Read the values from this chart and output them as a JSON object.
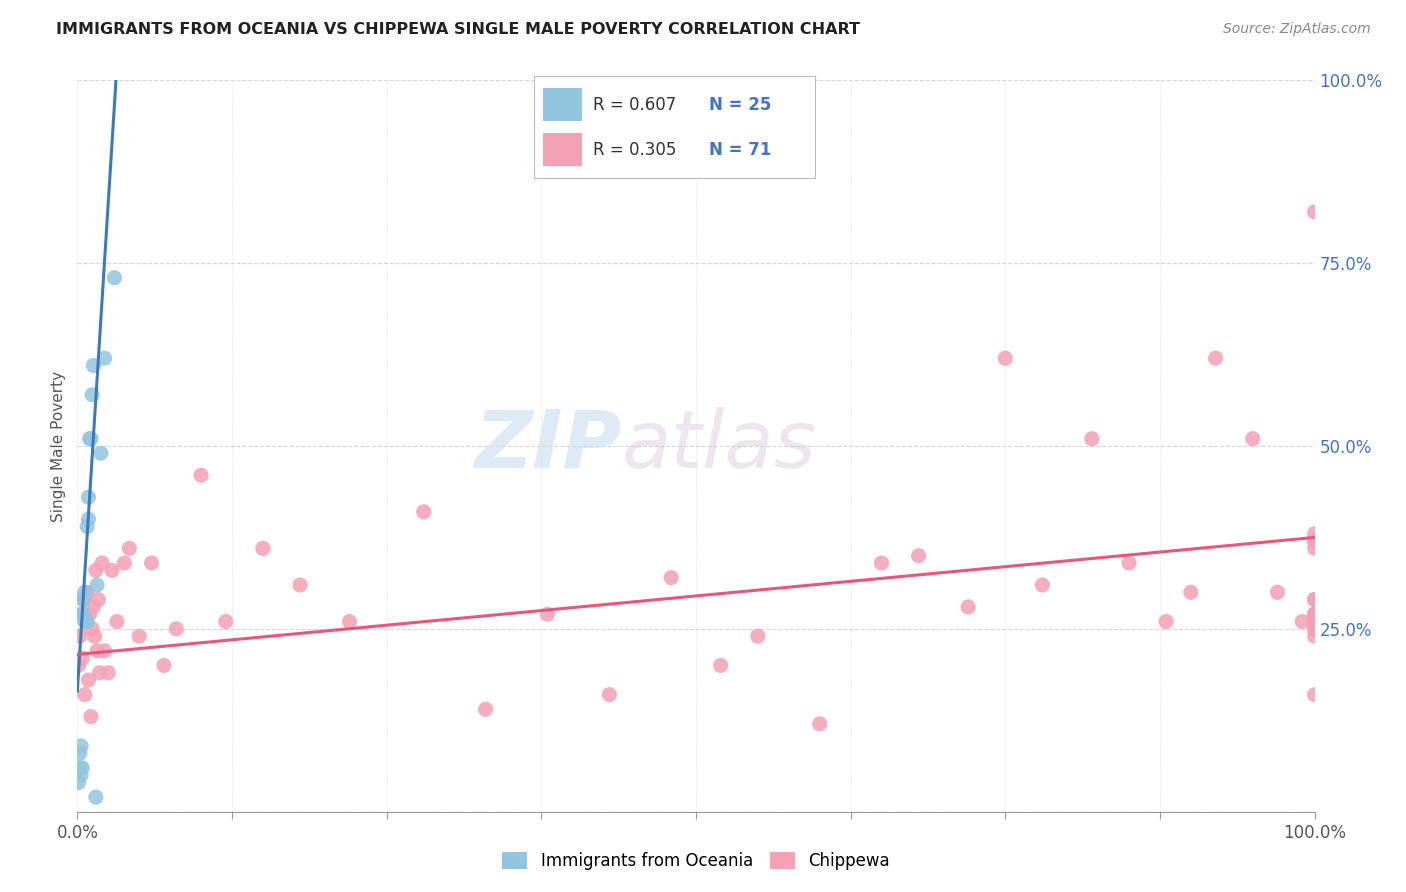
{
  "title": "IMMIGRANTS FROM OCEANIA VS CHIPPEWA SINGLE MALE POVERTY CORRELATION CHART",
  "source": "Source: ZipAtlas.com",
  "ylabel": "Single Male Poverty",
  "legend_label1": "Immigrants from Oceania",
  "legend_label2": "Chippewa",
  "R1": 0.607,
  "N1": 25,
  "R2": 0.305,
  "N2": 71,
  "color_blue": "#92c5de",
  "color_pink": "#f4a0b5",
  "color_line_blue": "#3a7abf",
  "color_line_pink": "#e8567a",
  "watermark_zip": "ZIP",
  "watermark_atlas": "atlas",
  "ytick_vals": [
    0.0,
    0.25,
    0.5,
    0.75,
    1.0
  ],
  "ytick_labels": [
    "",
    "25.0%",
    "50.0%",
    "75.0%",
    "100.0%"
  ],
  "xtick_major_vals": [
    0.0,
    0.125,
    0.25,
    0.375,
    0.5,
    0.625,
    0.75,
    0.875,
    1.0
  ],
  "xlim": [
    0.0,
    1.0
  ],
  "ylim": [
    0.0,
    1.0
  ],
  "blue_x": [
    0.001,
    0.002,
    0.002,
    0.003,
    0.003,
    0.004,
    0.004,
    0.005,
    0.005,
    0.006,
    0.006,
    0.007,
    0.008,
    0.008,
    0.009,
    0.009,
    0.01,
    0.011,
    0.012,
    0.013,
    0.015,
    0.016,
    0.019,
    0.022,
    0.03
  ],
  "blue_y": [
    0.04,
    0.06,
    0.08,
    0.05,
    0.09,
    0.06,
    0.27,
    0.27,
    0.29,
    0.26,
    0.3,
    0.26,
    0.26,
    0.39,
    0.4,
    0.43,
    0.51,
    0.51,
    0.57,
    0.61,
    0.02,
    0.31,
    0.49,
    0.62,
    0.73
  ],
  "pink_x": [
    0.001,
    0.002,
    0.003,
    0.004,
    0.005,
    0.006,
    0.007,
    0.008,
    0.009,
    0.01,
    0.011,
    0.012,
    0.013,
    0.014,
    0.015,
    0.016,
    0.017,
    0.018,
    0.02,
    0.022,
    0.025,
    0.028,
    0.032,
    0.038,
    0.042,
    0.05,
    0.06,
    0.07,
    0.08,
    0.1,
    0.12,
    0.15,
    0.18,
    0.22,
    0.28,
    0.33,
    0.38,
    0.43,
    0.48,
    0.52,
    0.55,
    0.6,
    0.65,
    0.68,
    0.72,
    0.75,
    0.78,
    0.82,
    0.85,
    0.88,
    0.9,
    0.92,
    0.95,
    0.97,
    0.99,
    1.0,
    1.0,
    1.0,
    1.0,
    1.0,
    1.0,
    1.0,
    1.0,
    1.0,
    1.0,
    1.0,
    1.0,
    1.0,
    1.0,
    1.0,
    1.0
  ],
  "pink_y": [
    0.2,
    0.24,
    0.27,
    0.21,
    0.29,
    0.16,
    0.26,
    0.3,
    0.18,
    0.27,
    0.13,
    0.25,
    0.28,
    0.24,
    0.33,
    0.22,
    0.29,
    0.19,
    0.34,
    0.22,
    0.19,
    0.33,
    0.26,
    0.34,
    0.36,
    0.24,
    0.34,
    0.2,
    0.25,
    0.46,
    0.26,
    0.36,
    0.31,
    0.26,
    0.41,
    0.14,
    0.27,
    0.16,
    0.32,
    0.2,
    0.24,
    0.12,
    0.34,
    0.35,
    0.28,
    0.62,
    0.31,
    0.51,
    0.34,
    0.26,
    0.3,
    0.62,
    0.51,
    0.3,
    0.26,
    0.36,
    0.25,
    0.27,
    0.37,
    0.24,
    0.29,
    0.26,
    0.37,
    0.26,
    0.29,
    0.82,
    0.27,
    0.38,
    0.25,
    0.16,
    0.27
  ],
  "blue_line_x0": 0.0,
  "blue_line_y0": 0.165,
  "blue_line_x1": 0.032,
  "blue_line_y1": 1.02,
  "pink_line_x0": 0.0,
  "pink_line_y0": 0.215,
  "pink_line_x1": 1.0,
  "pink_line_y1": 0.375
}
